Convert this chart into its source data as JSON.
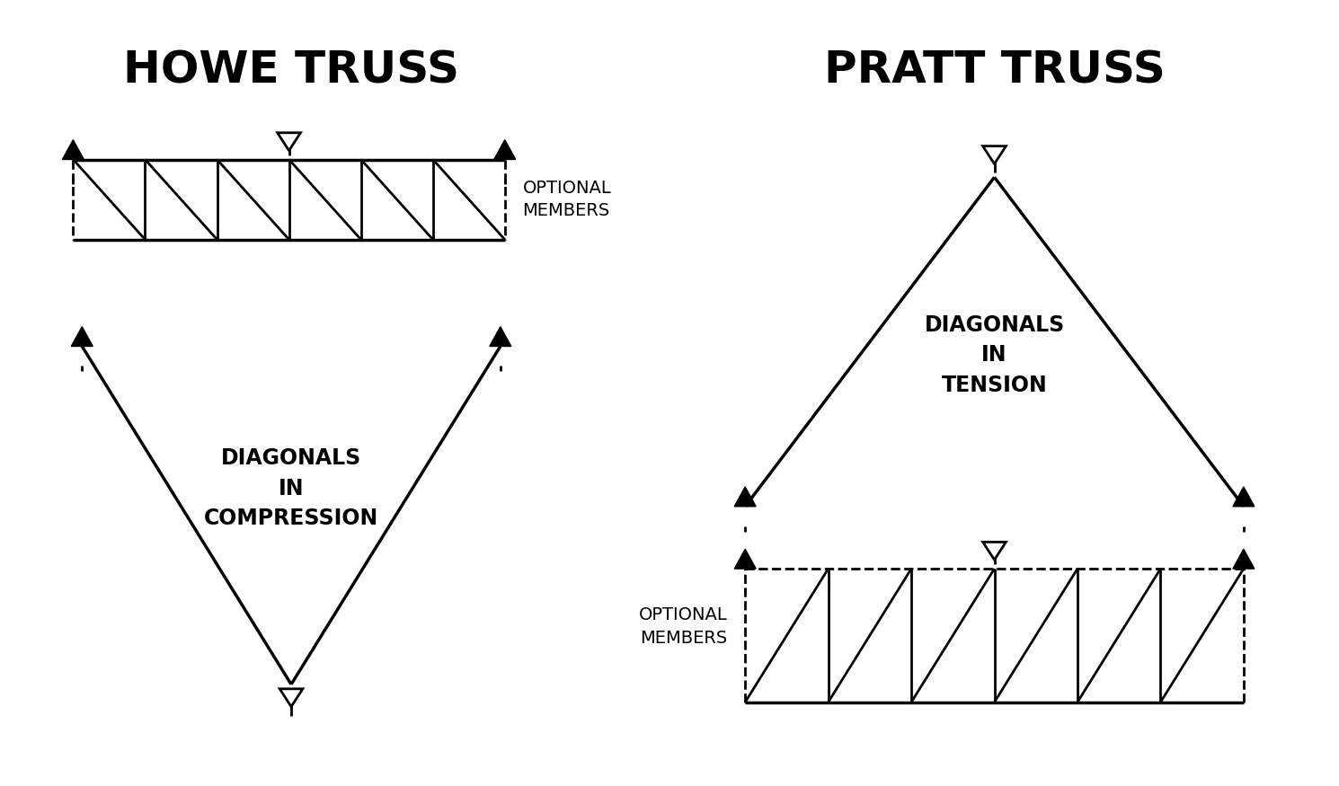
{
  "bg_color": "#ffffff",
  "line_color": "#000000",
  "howe_title": "HOWE TRUSS",
  "pratt_title": "PRATT TRUSS",
  "howe_diag_label": "DIAGONALS\nIN\nCOMPRESSION",
  "pratt_diag_label": "DIAGONALS\nIN\nTENSION",
  "optional_label": "OPTIONAL\nMEMBERS",
  "title_fontsize": 36,
  "label_fontsize": 17,
  "optional_fontsize": 14,
  "lw_main": 2.0,
  "lw_thick": 2.5,
  "arrow_size": 0.22
}
